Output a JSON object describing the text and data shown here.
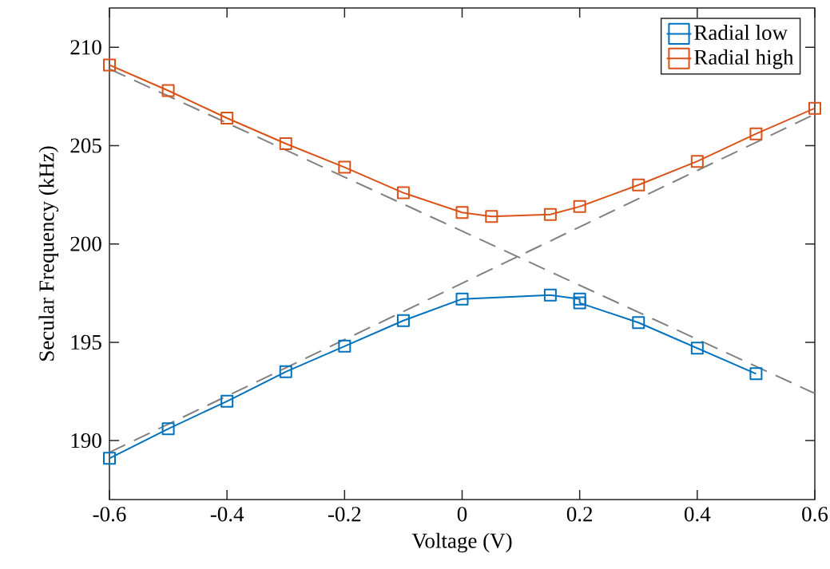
{
  "chart_data": {
    "type": "line",
    "xlabel": "Voltage (V)",
    "ylabel": "Secular Frequency (kHz)",
    "xlim": [
      -0.6,
      0.6
    ],
    "xticks": [
      -0.6,
      -0.4,
      -0.2,
      0,
      0.2,
      0.4,
      0.6
    ],
    "ylim": [
      187,
      212
    ],
    "yticks": [
      190,
      195,
      200,
      205,
      210
    ],
    "grid": false,
    "legend": "top right",
    "marker": "square",
    "line_style": "solid",
    "series": [
      {
        "name": "Radial low",
        "color": "#0072bd",
        "x": [
          -0.6,
          -0.5,
          -0.4,
          -0.3,
          -0.2,
          -0.1,
          0,
          0.15,
          0.2,
          0.2,
          0.3,
          0.4,
          0.5
        ],
        "values": [
          189.1,
          190.6,
          192.0,
          193.5,
          194.8,
          196.1,
          197.2,
          197.4,
          197.2,
          197.0,
          196.0,
          194.7,
          193.4
        ]
      },
      {
        "name": "Radial high",
        "color": "#d95319",
        "x": [
          -0.6,
          -0.5,
          -0.4,
          -0.3,
          -0.2,
          -0.1,
          0,
          0.05,
          0.15,
          0.2,
          0.3,
          0.4,
          0.5,
          0.6
        ],
        "values": [
          209.1,
          207.8,
          206.4,
          205.1,
          203.9,
          202.6,
          201.6,
          201.4,
          201.5,
          201.9,
          203.0,
          204.2,
          205.6,
          206.9
        ]
      },
      {
        "type": "line",
        "color": "#808080",
        "marker": "none",
        "line_style": "dashed",
        "x": [
          -0.6,
          0.6
        ],
        "values": [
          189.4,
          206.6
        ]
      },
      {
        "type": "line",
        "color": "#808080",
        "marker": "none",
        "line_style": "dashed",
        "x": [
          -0.6,
          0.6
        ],
        "values": [
          208.9,
          192.4
        ]
      }
    ]
  }
}
